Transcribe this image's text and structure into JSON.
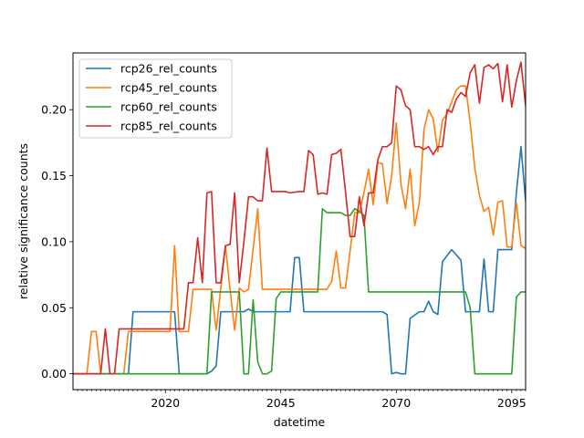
{
  "chart_data": {
    "type": "line",
    "title": "",
    "xlabel": "datetime",
    "ylabel": "relative significance counts",
    "xlim": [
      2000,
      2098
    ],
    "ylim": [
      -0.012,
      0.243
    ],
    "x_ticks": [
      2020,
      2045,
      2070,
      2095
    ],
    "y_ticks": [
      0.0,
      0.05,
      0.1,
      0.15,
      0.2
    ],
    "y_tick_labels": [
      "0.00",
      "0.05",
      "0.10",
      "0.15",
      "0.20"
    ],
    "grid": false,
    "legend_position": "top-left",
    "series": [
      {
        "name": "rcp26_rel_counts",
        "color": "#1f77b4",
        "points": [
          [
            2000,
            0
          ],
          [
            2012,
            0
          ],
          [
            2013,
            0.047
          ],
          [
            2022,
            0.047
          ],
          [
            2023,
            0
          ],
          [
            2029,
            0
          ],
          [
            2030,
            0.002
          ],
          [
            2031,
            0.006
          ],
          [
            2032,
            0.047
          ],
          [
            2037,
            0.047
          ],
          [
            2038,
            0.049
          ],
          [
            2039,
            0.047
          ],
          [
            2047,
            0.047
          ],
          [
            2048,
            0.088
          ],
          [
            2049,
            0.088
          ],
          [
            2050,
            0.047
          ],
          [
            2067,
            0.047
          ],
          [
            2068,
            0.045
          ],
          [
            2069,
            0
          ],
          [
            2070,
            0.001
          ],
          [
            2071,
            0
          ],
          [
            2072,
            0
          ],
          [
            2073,
            0.042
          ],
          [
            2075,
            0.047
          ],
          [
            2076,
            0.047
          ],
          [
            2077,
            0.055
          ],
          [
            2078,
            0.047
          ],
          [
            2079,
            0.045
          ],
          [
            2080,
            0.085
          ],
          [
            2082,
            0.094
          ],
          [
            2084,
            0.086
          ],
          [
            2085,
            0.047
          ],
          [
            2088,
            0.047
          ],
          [
            2089,
            0.087
          ],
          [
            2090,
            0.047
          ],
          [
            2091,
            0.047
          ],
          [
            2092,
            0.094
          ],
          [
            2094,
            0.094
          ],
          [
            2095,
            0.094
          ],
          [
            2096,
            0.137
          ],
          [
            2097,
            0.172
          ],
          [
            2098,
            0.131
          ],
          [
            2099,
            0.142
          ]
        ]
      },
      {
        "name": "rcp45_rel_counts",
        "color": "#ff7f0e",
        "points": [
          [
            2000,
            0
          ],
          [
            2003,
            0
          ],
          [
            2004,
            0.032
          ],
          [
            2005,
            0.032
          ],
          [
            2006,
            0
          ],
          [
            2008,
            0
          ],
          [
            2009,
            0
          ],
          [
            2010,
            0
          ],
          [
            2011,
            0
          ],
          [
            2012,
            0.032
          ],
          [
            2021,
            0.032
          ],
          [
            2022,
            0.097
          ],
          [
            2023,
            0.032
          ],
          [
            2025,
            0.032
          ],
          [
            2026,
            0.064
          ],
          [
            2030,
            0.064
          ],
          [
            2031,
            0.033
          ],
          [
            2033,
            0.097
          ],
          [
            2034,
            0.064
          ],
          [
            2035,
            0.033
          ],
          [
            2036,
            0.065
          ],
          [
            2037,
            0.062
          ],
          [
            2038,
            0.064
          ],
          [
            2040,
            0.125
          ],
          [
            2041,
            0.064
          ],
          [
            2050,
            0.064
          ],
          [
            2055,
            0.064
          ],
          [
            2056,
            0.07
          ],
          [
            2057,
            0.093
          ],
          [
            2058,
            0.065
          ],
          [
            2059,
            0.065
          ],
          [
            2060,
            0.093
          ],
          [
            2061,
            0.122
          ],
          [
            2062,
            0.122
          ],
          [
            2063,
            0.137
          ],
          [
            2064,
            0.155
          ],
          [
            2065,
            0.128
          ],
          [
            2066,
            0.16
          ],
          [
            2067,
            0.159
          ],
          [
            2068,
            0.129
          ],
          [
            2069,
            0.15
          ],
          [
            2070,
            0.19
          ],
          [
            2071,
            0.144
          ],
          [
            2072,
            0.125
          ],
          [
            2073,
            0.155
          ],
          [
            2074,
            0.112
          ],
          [
            2075,
            0.13
          ],
          [
            2076,
            0.185
          ],
          [
            2077,
            0.2
          ],
          [
            2078,
            0.193
          ],
          [
            2079,
            0.168
          ],
          [
            2080,
            0.192
          ],
          [
            2081,
            0.197
          ],
          [
            2082,
            0.206
          ],
          [
            2083,
            0.215
          ],
          [
            2084,
            0.218
          ],
          [
            2085,
            0.218
          ],
          [
            2086,
            0.19
          ],
          [
            2087,
            0.156
          ],
          [
            2088,
            0.135
          ],
          [
            2089,
            0.123
          ],
          [
            2090,
            0.126
          ],
          [
            2091,
            0.105
          ],
          [
            2092,
            0.13
          ],
          [
            2093,
            0.131
          ],
          [
            2094,
            0.096
          ],
          [
            2095,
            0.096
          ],
          [
            2096,
            0.13
          ],
          [
            2097,
            0.097
          ],
          [
            2098,
            0.095
          ],
          [
            2099,
            0.097
          ]
        ]
      },
      {
        "name": "rcp60_rel_counts",
        "color": "#2ca02c",
        "points": [
          [
            2000,
            0
          ],
          [
            2029,
            0
          ],
          [
            2030,
            0.062
          ],
          [
            2036,
            0.062
          ],
          [
            2037,
            0
          ],
          [
            2038,
            0
          ],
          [
            2039,
            0.056
          ],
          [
            2040,
            0.009
          ],
          [
            2041,
            0
          ],
          [
            2042,
            0
          ],
          [
            2043,
            0.002
          ],
          [
            2044,
            0.057
          ],
          [
            2045,
            0.062
          ],
          [
            2053,
            0.062
          ],
          [
            2054,
            0.125
          ],
          [
            2055,
            0.122
          ],
          [
            2058,
            0.122
          ],
          [
            2059,
            0.12
          ],
          [
            2060,
            0.12
          ],
          [
            2061,
            0.125
          ],
          [
            2062,
            0.123
          ],
          [
            2063,
            0.12
          ],
          [
            2064,
            0.062
          ],
          [
            2085,
            0.062
          ],
          [
            2086,
            0.05
          ],
          [
            2087,
            0
          ],
          [
            2095,
            0
          ],
          [
            2096,
            0.058
          ],
          [
            2097,
            0.062
          ],
          [
            2099,
            0.062
          ]
        ]
      },
      {
        "name": "rcp85_rel_counts",
        "color": "#d62728",
        "points": [
          [
            2000,
            0
          ],
          [
            2005,
            0
          ],
          [
            2006,
            0
          ],
          [
            2007,
            0.034
          ],
          [
            2008,
            0
          ],
          [
            2009,
            0
          ],
          [
            2010,
            0.034
          ],
          [
            2024,
            0.034
          ],
          [
            2025,
            0.069
          ],
          [
            2026,
            0.069
          ],
          [
            2027,
            0.103
          ],
          [
            2028,
            0.069
          ],
          [
            2029,
            0.137
          ],
          [
            2030,
            0.138
          ],
          [
            2031,
            0.069
          ],
          [
            2032,
            0.069
          ],
          [
            2033,
            0.097
          ],
          [
            2034,
            0.098
          ],
          [
            2035,
            0.137
          ],
          [
            2036,
            0.069
          ],
          [
            2037,
            0.1
          ],
          [
            2038,
            0.134
          ],
          [
            2039,
            0.134
          ],
          [
            2040,
            0.131
          ],
          [
            2041,
            0.131
          ],
          [
            2042,
            0.171
          ],
          [
            2043,
            0.138
          ],
          [
            2046,
            0.138
          ],
          [
            2047,
            0.137
          ],
          [
            2049,
            0.138
          ],
          [
            2050,
            0.138
          ],
          [
            2051,
            0.169
          ],
          [
            2052,
            0.166
          ],
          [
            2053,
            0.136
          ],
          [
            2054,
            0.137
          ],
          [
            2055,
            0.136
          ],
          [
            2056,
            0.166
          ],
          [
            2057,
            0.167
          ],
          [
            2058,
            0.17
          ],
          [
            2059,
            0.138
          ],
          [
            2060,
            0.104
          ],
          [
            2061,
            0.104
          ],
          [
            2062,
            0.134
          ],
          [
            2063,
            0.112
          ],
          [
            2064,
            0.137
          ],
          [
            2065,
            0.137
          ],
          [
            2066,
            0.162
          ],
          [
            2067,
            0.172
          ],
          [
            2068,
            0.172
          ],
          [
            2069,
            0.175
          ],
          [
            2070,
            0.218
          ],
          [
            2071,
            0.215
          ],
          [
            2072,
            0.203
          ],
          [
            2073,
            0.2
          ],
          [
            2074,
            0.172
          ],
          [
            2075,
            0.172
          ],
          [
            2076,
            0.17
          ],
          [
            2077,
            0.172
          ],
          [
            2078,
            0.166
          ],
          [
            2079,
            0.172
          ],
          [
            2080,
            0.172
          ],
          [
            2081,
            0.2
          ],
          [
            2082,
            0.198
          ],
          [
            2083,
            0.208
          ],
          [
            2084,
            0.213
          ],
          [
            2085,
            0.21
          ],
          [
            2086,
            0.228
          ],
          [
            2087,
            0.234
          ],
          [
            2088,
            0.205
          ],
          [
            2089,
            0.232
          ],
          [
            2090,
            0.234
          ],
          [
            2091,
            0.231
          ],
          [
            2092,
            0.235
          ],
          [
            2093,
            0.206
          ],
          [
            2094,
            0.234
          ],
          [
            2095,
            0.202
          ],
          [
            2096,
            0.222
          ],
          [
            2097,
            0.236
          ],
          [
            2098,
            0.203
          ],
          [
            2099,
            0.206
          ]
        ]
      }
    ]
  }
}
